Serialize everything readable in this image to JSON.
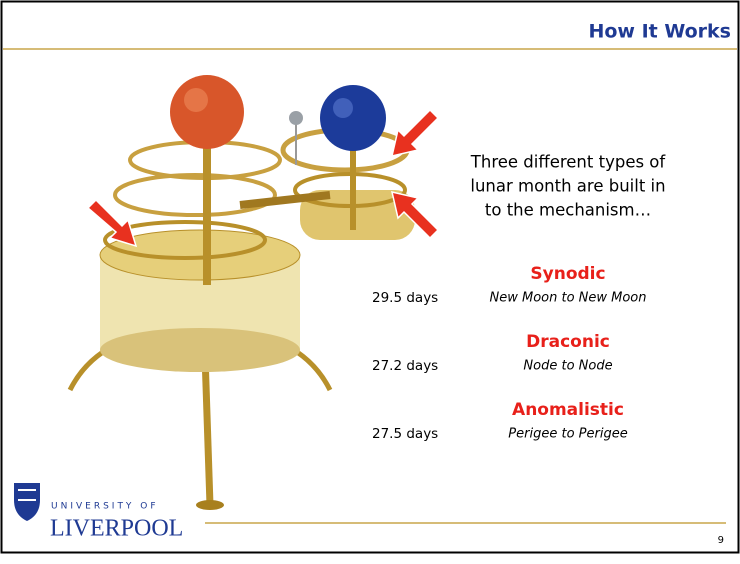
{
  "header": {
    "title": "How It Works"
  },
  "intro": {
    "lines": [
      "Three different types of",
      "lunar month are built in",
      "to the mechanism…"
    ]
  },
  "months": [
    {
      "name": "Synodic",
      "duration": "29.5 days",
      "description": "New Moon to New Moon"
    },
    {
      "name": "Draconic",
      "duration": "27.2 days",
      "description": "Node to Node"
    },
    {
      "name": "Anomalistic",
      "duration": "27.5 days",
      "description": "Perigee to Perigee"
    }
  ],
  "footer": {
    "logo_top": "UNIVERSITY OF",
    "logo_name": "LIVERPOOL",
    "page_number": 9
  }
}
